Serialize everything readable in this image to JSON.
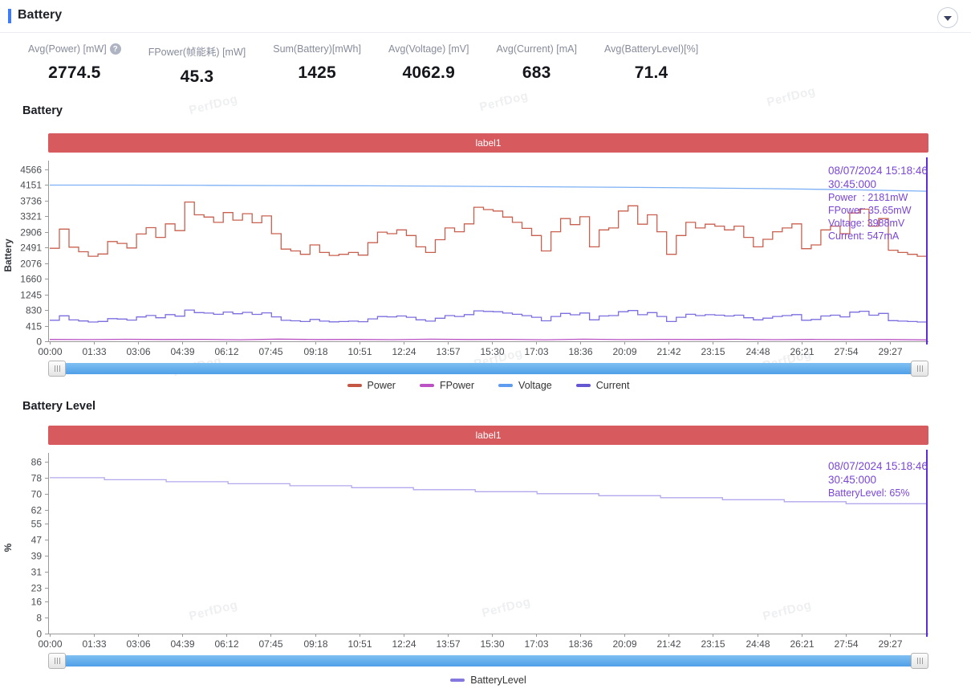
{
  "header": {
    "title": "Battery"
  },
  "stats": {
    "items": [
      {
        "label": "Avg(Power) [mW]",
        "value": "2774.5",
        "has_help_icon": true
      },
      {
        "label": "FPower(帧能耗) [mW]",
        "value": "45.3"
      },
      {
        "label": "Sum(Battery)[mWh]",
        "value": "1425"
      },
      {
        "label": "Avg(Voltage) [mV]",
        "value": "4062.9"
      },
      {
        "label": "Avg(Current) [mA]",
        "value": "683"
      },
      {
        "label": "Avg(BatteryLevel)[%]",
        "value": "71.4"
      }
    ]
  },
  "watermark_text": "PerfDog",
  "colors": {
    "accent_blue": "#3e7bfa",
    "banner_red": "#d75a5f",
    "scrollbar_blue": "#55a7ea",
    "cursor_purple": "#5c2dd5",
    "tooltip_purple": "#7a45d9",
    "axis_gray": "#999999"
  },
  "chart_data": [
    {
      "id": "battery",
      "type": "line",
      "title": "Battery",
      "banner_label": "label1",
      "ylabel": "Battery",
      "ylim": [
        0,
        4566
      ],
      "y_ticks": [
        0,
        415,
        830,
        1245,
        1660,
        2076,
        2491,
        2906,
        3321,
        3736,
        4151,
        4566
      ],
      "x_tick_labels": [
        "00:00",
        "01:33",
        "03:06",
        "04:39",
        "06:12",
        "07:45",
        "09:18",
        "10:51",
        "12:24",
        "13:57",
        "15:30",
        "17:03",
        "18:36",
        "20:09",
        "21:42",
        "23:15",
        "24:48",
        "26:21",
        "27:54",
        "29:27"
      ],
      "x_tick_interval_seconds": 93,
      "duration_seconds": 1845,
      "grid": false,
      "legend_position": "bottom",
      "legend_order": [
        "Power",
        "FPower",
        "Voltage",
        "Current"
      ],
      "series": [
        {
          "name": "Voltage",
          "style": "line",
          "color": "#7db0f5",
          "legend_color": "#5e9cf0",
          "values": [
            4151,
            4149,
            4144,
            4138,
            4130,
            4120,
            4108,
            4094,
            4078,
            4056,
            4028,
            3988
          ]
        },
        {
          "name": "FPower",
          "style": "line",
          "color": "#bb53c5",
          "legend_color": "#bb53c5",
          "values": [
            50,
            44,
            54,
            47,
            52,
            41,
            57,
            46,
            50,
            43,
            55,
            46,
            52,
            40,
            56,
            44,
            51,
            47,
            54,
            42,
            49,
            45,
            48,
            36
          ]
        },
        {
          "name": "Current",
          "style": "step",
          "color": "#7b6fe0",
          "legend_color": "#6557d2",
          "values": [
            560,
            676,
            568,
            540,
            513,
            527,
            601,
            590,
            563,
            647,
            685,
            626,
            708,
            667,
            830,
            762,
            749,
            717,
            776,
            731,
            769,
            715,
            756,
            649,
            556,
            545,
            524,
            581,
            536,
            517,
            524,
            536,
            520,
            595,
            658,
            649,
            672,
            638,
            570,
            536,
            613,
            683,
            660,
            708,
            808,
            794,
            785,
            749,
            717,
            681,
            638,
            545,
            660,
            740,
            704,
            751,
            570,
            672,
            683,
            785,
            817,
            706,
            762,
            660,
            524,
            638,
            717,
            683,
            706,
            694,
            672,
            694,
            626,
            570,
            615,
            660,
            683,
            708,
            558,
            581,
            672,
            694,
            649,
            774,
            797,
            694,
            740,
            549,
            536,
            524,
            513,
            547
          ]
        },
        {
          "name": "Power",
          "style": "step",
          "color": "#c9604f",
          "legend_color": "#c45744",
          "values": [
            2470,
            2980,
            2500,
            2380,
            2260,
            2320,
            2650,
            2600,
            2480,
            2850,
            3020,
            2760,
            3120,
            2940,
            3700,
            3360,
            3300,
            3160,
            3420,
            3220,
            3390,
            3150,
            3330,
            2860,
            2450,
            2400,
            2310,
            2560,
            2360,
            2280,
            2310,
            2360,
            2290,
            2620,
            2900,
            2860,
            2960,
            2810,
            2510,
            2360,
            2700,
            3010,
            2910,
            3120,
            3560,
            3500,
            3460,
            3300,
            3160,
            3000,
            2810,
            2400,
            2910,
            3260,
            3100,
            3310,
            2510,
            2960,
            3010,
            3460,
            3600,
            3110,
            3360,
            2910,
            2310,
            2810,
            3160,
            3010,
            3110,
            3060,
            2960,
            3060,
            2760,
            2510,
            2710,
            2910,
            3010,
            3120,
            2460,
            2560,
            2960,
            3060,
            2860,
            3410,
            3510,
            3060,
            3260,
            2420,
            2360,
            2310,
            2260,
            2181
          ]
        }
      ],
      "tooltip": {
        "date_line": "08/07/2024 15:18:46",
        "time_line": "30:45:000",
        "rows": [
          "Power  : 2181mW",
          "FPower: 35.65mW",
          "Voltage: 3988mV",
          "Current: 547mA"
        ]
      }
    },
    {
      "id": "battery-level",
      "type": "line",
      "title": "Battery Level",
      "banner_label": "label1",
      "ylabel": "%",
      "ylim": [
        0,
        86
      ],
      "y_ticks": [
        0,
        8,
        16,
        23,
        31,
        39,
        47,
        55,
        62,
        70,
        78,
        86
      ],
      "x_tick_labels": [
        "00:00",
        "01:33",
        "03:06",
        "04:39",
        "06:12",
        "07:45",
        "09:18",
        "10:51",
        "12:24",
        "13:57",
        "15:30",
        "17:03",
        "18:36",
        "20:09",
        "21:42",
        "23:15",
        "24:48",
        "26:21",
        "27:54",
        "29:27"
      ],
      "x_tick_interval_seconds": 93,
      "duration_seconds": 1845,
      "grid": false,
      "legend_position": "bottom",
      "legend_order": [
        "BatteryLevel"
      ],
      "series": [
        {
          "name": "BatteryLevel",
          "style": "step",
          "color": "#b3a8ee",
          "legend_color": "#8478e0",
          "t": [
            0,
            115,
            245,
            375,
            505,
            635,
            765,
            895,
            1025,
            1155,
            1285,
            1415,
            1545,
            1675
          ],
          "values": [
            78,
            77,
            76,
            75,
            74,
            73,
            72,
            71,
            70,
            69,
            68,
            67,
            66,
            65
          ]
        }
      ],
      "tooltip": {
        "date_line": "08/07/2024 15:18:46",
        "time_line": "30:45:000",
        "rows": [
          "BatteryLevel: 65%"
        ]
      }
    }
  ]
}
